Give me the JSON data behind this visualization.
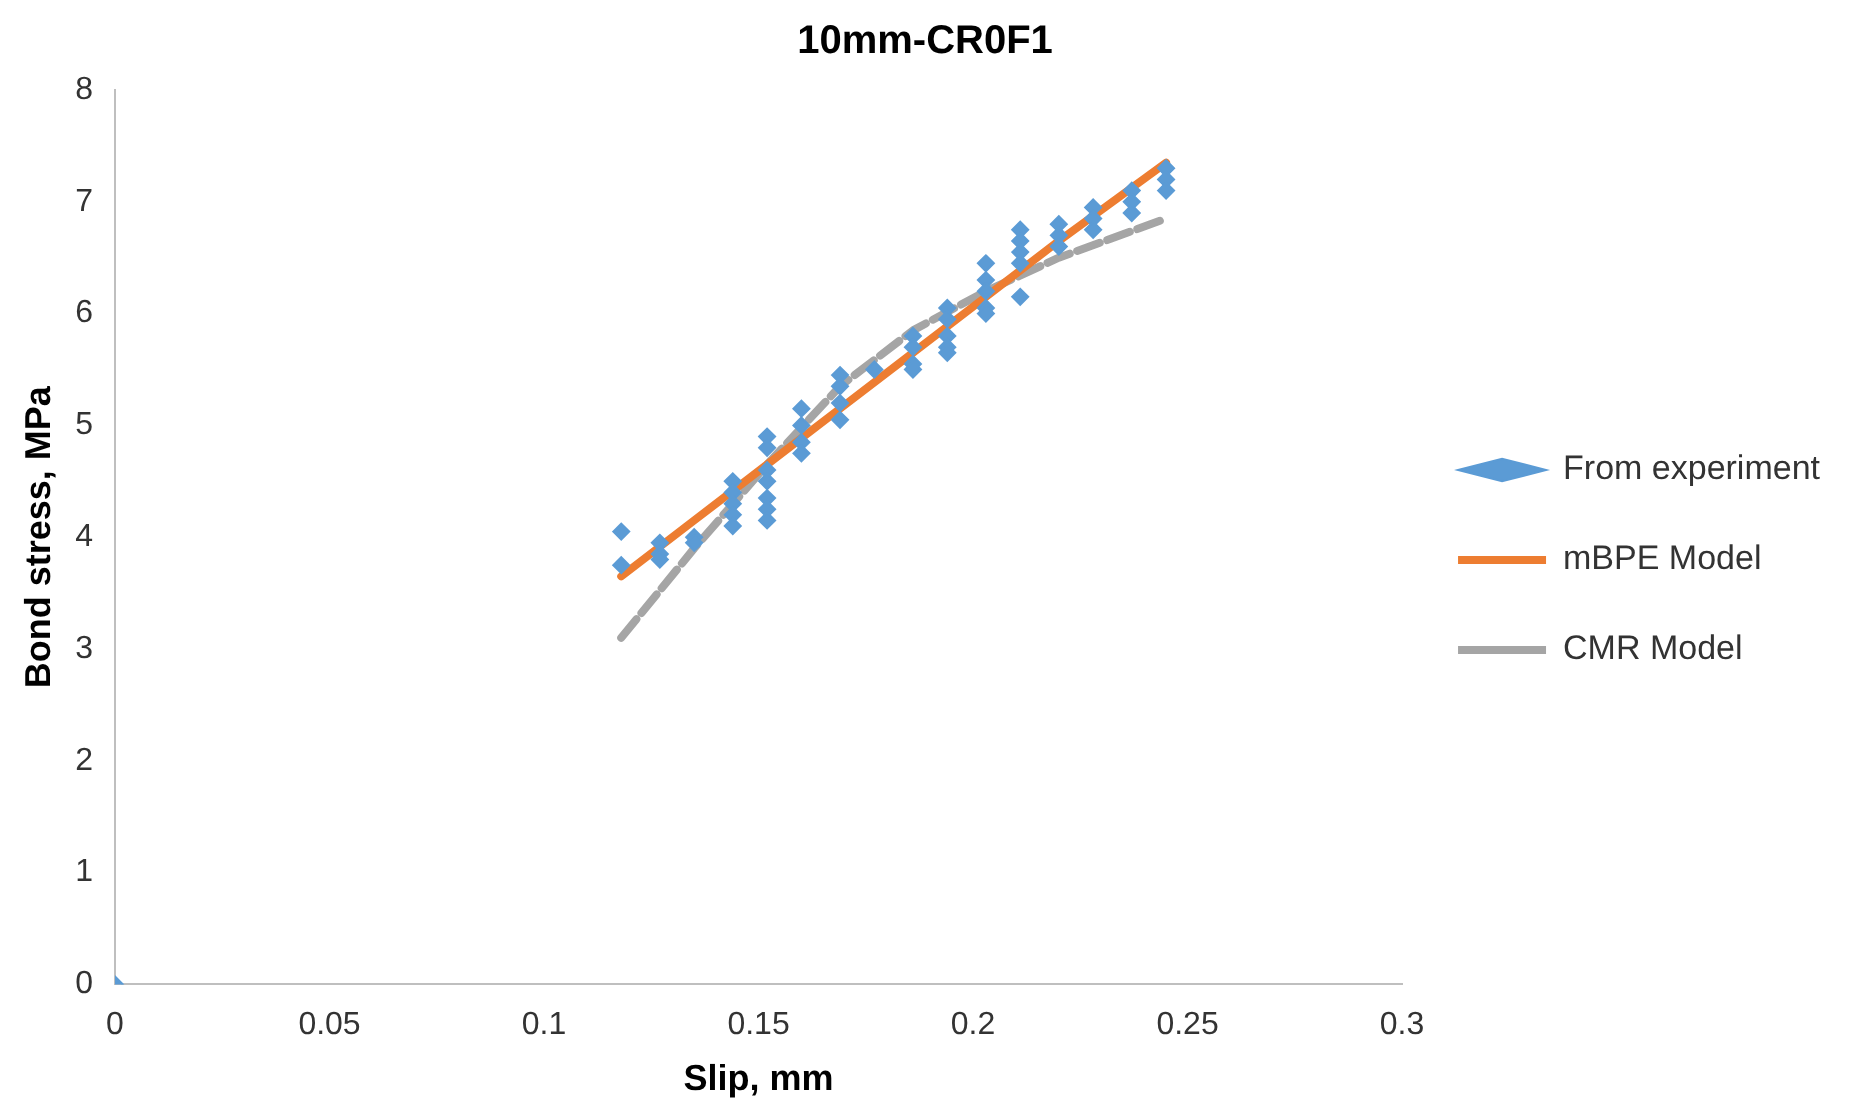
{
  "chart_data": {
    "type": "scatter",
    "title": "10mm-CR0F1",
    "xlabel": "Slip, mm",
    "ylabel": "Bond stress, MPa",
    "xlim": [
      0,
      0.3
    ],
    "xticks": [
      0,
      0.05,
      0.1,
      0.15,
      0.2,
      0.25,
      0.3
    ],
    "ylim": [
      0,
      8
    ],
    "yticks": [
      0,
      1,
      2,
      3,
      4,
      5,
      6,
      7,
      8
    ],
    "grid": false,
    "legend": "right",
    "series": [
      {
        "name": "From experiment",
        "type": "scatter",
        "marker": "diamond",
        "color": "#5b9bd5",
        "x": [
          0,
          0.118,
          0.118,
          0.127,
          0.127,
          0.127,
          0.135,
          0.135,
          0.144,
          0.144,
          0.144,
          0.144,
          0.144,
          0.152,
          0.152,
          0.152,
          0.152,
          0.152,
          0.152,
          0.152,
          0.16,
          0.16,
          0.16,
          0.16,
          0.169,
          0.169,
          0.169,
          0.169,
          0.177,
          0.186,
          0.186,
          0.186,
          0.186,
          0.194,
          0.194,
          0.194,
          0.194,
          0.194,
          0.203,
          0.203,
          0.203,
          0.203,
          0.203,
          0.211,
          0.211,
          0.211,
          0.211,
          0.211,
          0.22,
          0.22,
          0.22,
          0.228,
          0.228,
          0.228,
          0.237,
          0.237,
          0.237,
          0.245,
          0.245,
          0.245
        ],
        "values": [
          0,
          4.05,
          3.75,
          3.95,
          3.85,
          3.8,
          4.0,
          3.95,
          4.5,
          4.4,
          4.3,
          4.2,
          4.1,
          4.9,
          4.8,
          4.6,
          4.5,
          4.35,
          4.25,
          4.15,
          5.15,
          5.0,
          4.85,
          4.75,
          5.45,
          5.35,
          5.2,
          5.05,
          5.5,
          5.8,
          5.7,
          5.55,
          5.5,
          6.05,
          5.95,
          5.8,
          5.7,
          5.65,
          6.45,
          6.3,
          6.2,
          6.05,
          6.0,
          6.75,
          6.65,
          6.55,
          6.45,
          6.15,
          6.8,
          6.7,
          6.6,
          6.95,
          6.85,
          6.75,
          7.1,
          7.0,
          6.9,
          7.3,
          7.2,
          7.1
        ]
      },
      {
        "name": "mBPE Model",
        "type": "line",
        "marker": "none",
        "line_style": "solid",
        "color": "#ed7d31",
        "x": [
          0.118,
          0.135,
          0.152,
          0.169,
          0.186,
          0.203,
          0.22,
          0.245
        ],
        "values": [
          3.65,
          4.15,
          4.65,
          5.15,
          5.65,
          6.15,
          6.65,
          7.35
        ]
      },
      {
        "name": "CMR Model",
        "type": "line",
        "marker": "none",
        "line_style": "dashed",
        "color": "#a5a5a5",
        "x": [
          0.118,
          0.135,
          0.152,
          0.169,
          0.186,
          0.203,
          0.22,
          0.245
        ],
        "values": [
          3.1,
          3.9,
          4.65,
          5.35,
          5.85,
          6.2,
          6.5,
          6.85
        ]
      }
    ]
  }
}
